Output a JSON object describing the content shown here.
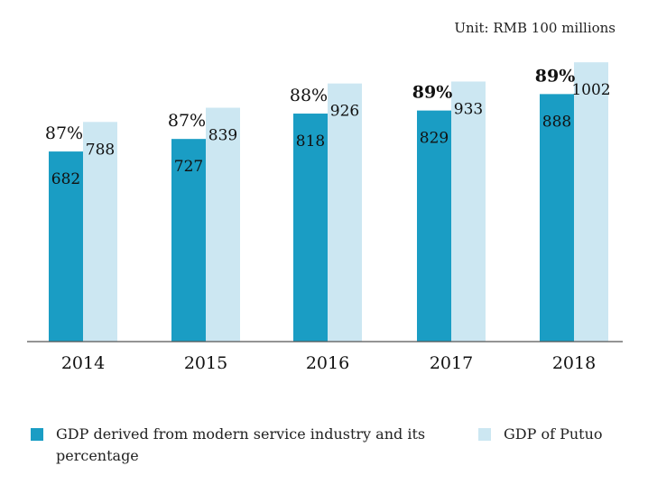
{
  "unit_label": "Unit: RMB 100 millions",
  "colors": {
    "service": "#1a9dc4",
    "putuo": "#cce7f2",
    "axis": "#555555"
  },
  "legend": [
    {
      "label": "GDP derived from modern service industry and its percentage",
      "color": "#1a9dc4"
    },
    {
      "label": "GDP  of  Putuo",
      "color": "#cce7f2"
    }
  ],
  "chart_data": {
    "type": "bar",
    "title": "",
    "unit": "RMB 100 millions",
    "categories": [
      "2014",
      "2015",
      "2016",
      "2017",
      "2018"
    ],
    "series": [
      {
        "name": "GDP derived from modern service industry and its percentage",
        "values": [
          682,
          727,
          818,
          829,
          888
        ],
        "color": "#1a9dc4"
      },
      {
        "name": "GDP of Putuo",
        "values": [
          788,
          839,
          926,
          933,
          1002
        ],
        "color": "#cce7f2"
      }
    ],
    "percentages": [
      "87%",
      "87%",
      "88%",
      "89%",
      "89%"
    ],
    "percent_bold": [
      false,
      false,
      false,
      true,
      true
    ],
    "ylim": [
      0,
      1080
    ],
    "grid": false
  }
}
